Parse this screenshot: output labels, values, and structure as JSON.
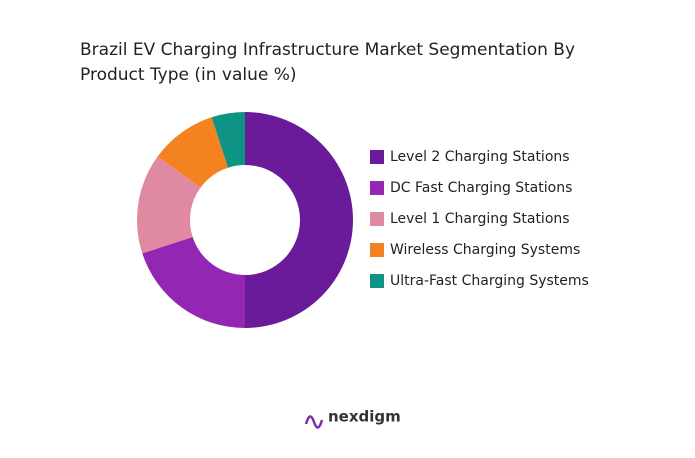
{
  "chart_data": {
    "type": "donut",
    "title": "Brazil EV Charging Infrastructure Market Segmentation By Product Type (in value %)",
    "categories": [
      "Level 2 Charging Stations",
      "DC Fast Charging Stations",
      "Level 1 Charging Stations",
      "Wireless Charging Systems",
      "Ultra-Fast Charging Systems"
    ],
    "values": [
      50,
      20,
      15,
      10,
      5
    ],
    "colors": [
      "#6a1b9a",
      "#9327b3",
      "#e08aa2",
      "#f58220",
      "#0f9384"
    ],
    "legend": "right"
  },
  "brand": "nexdigm"
}
